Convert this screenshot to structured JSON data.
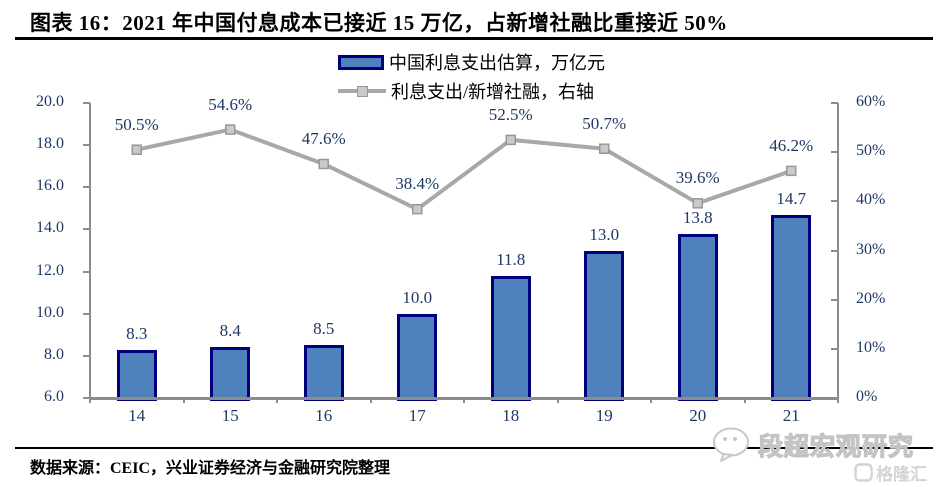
{
  "title": "图表 16：2021 年中国付息成本已接近 15 万亿，占新增社融比重接近 50%",
  "legend": [
    {
      "label": "中国利息支出估算，万亿元",
      "type": "bar"
    },
    {
      "label": "利息支出/新增社融，右轴",
      "type": "line"
    }
  ],
  "source": {
    "text": "数据来源：CEIC，兴业证券经济与金融研究院整理"
  },
  "watermark": {
    "icon": "wechat-ghost-icon",
    "brand": "段超宏观研究",
    "logo_text": "格隆汇"
  },
  "colors": {
    "bar_fill": "#4F81BD",
    "bar_border": "#00007D",
    "line": "#A8A8A8",
    "marker_fill": "#C9C9C9",
    "marker_border": "#989898",
    "axis": "#8C8C8C",
    "label_text": "#1F3864",
    "title_text": "#000000"
  },
  "chart_data": {
    "type": "bar+line",
    "title": "2021 年中国付息成本已接近 15 万亿，占新增社融比重接近 50%",
    "categories": [
      "14",
      "15",
      "16",
      "17",
      "18",
      "19",
      "20",
      "21"
    ],
    "series": [
      {
        "name": "中国利息支出估算，万亿元",
        "type": "bar",
        "axis": "left",
        "values": [
          8.3,
          8.4,
          8.5,
          10.0,
          11.8,
          13.0,
          13.8,
          14.7
        ],
        "labels": [
          "8.3",
          "8.4",
          "8.5",
          "10.0",
          "11.8",
          "13.0",
          "13.8",
          "14.7"
        ]
      },
      {
        "name": "利息支出/新增社融，右轴",
        "type": "line",
        "axis": "right",
        "values": [
          50.5,
          54.6,
          47.6,
          38.4,
          52.5,
          50.7,
          39.6,
          46.2
        ],
        "labels": [
          "50.5%",
          "54.6%",
          "47.6%",
          "38.4%",
          "52.5%",
          "50.7%",
          "39.6%",
          "46.2%"
        ]
      }
    ],
    "left_axis": {
      "min": 6,
      "max": 20,
      "step": 2,
      "ticks": [
        "20.0",
        "18.0",
        "16.0",
        "14.0",
        "12.0",
        "10.0",
        "8.0",
        "6.0"
      ]
    },
    "right_axis": {
      "min": 0,
      "max": 60,
      "step": 10,
      "ticks": [
        "60%",
        "50%",
        "40%",
        "30%",
        "20%",
        "10%",
        "0%"
      ]
    },
    "grid": false,
    "legend_position": "top"
  }
}
